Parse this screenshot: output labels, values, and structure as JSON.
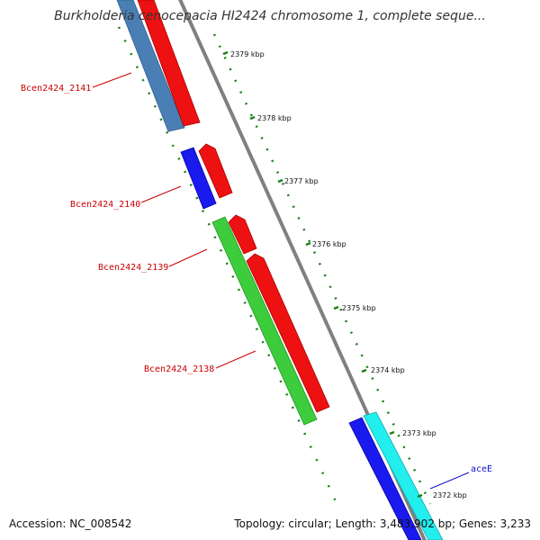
{
  "title": "Burkholderia cenocepacia HI2424 chromosome 1, complete seque...",
  "footer": {
    "accession": "Accession: NC_008542",
    "summary": "Topology: circular; Length: 3,483,902 bp; Genes: 3,233"
  },
  "ruler_labels": [
    "2379 kbp",
    "2378 kbp",
    "2377 kbp",
    "2376 kbp",
    "2375 kbp",
    "2374 kbp",
    "2373 kbp",
    "2372 kbp"
  ],
  "gene_labels": [
    "Bcen2424_2141",
    "Bcen2424_2140",
    "Bcen2424_2139",
    "Bcen2424_2138",
    "aceE"
  ],
  "colors": {
    "reverse_strand_red": "#ee1111",
    "forward_strand_red": "#ee1111",
    "blue": "#1a1aee",
    "steel_blue": "#4a7fb5",
    "green": "#3ccc3c",
    "cyan": "#22eeee",
    "backbone": "#808080",
    "ruler": "#1a7f1a",
    "label_red": "#cc0000",
    "label_blue": "#1111cc"
  }
}
